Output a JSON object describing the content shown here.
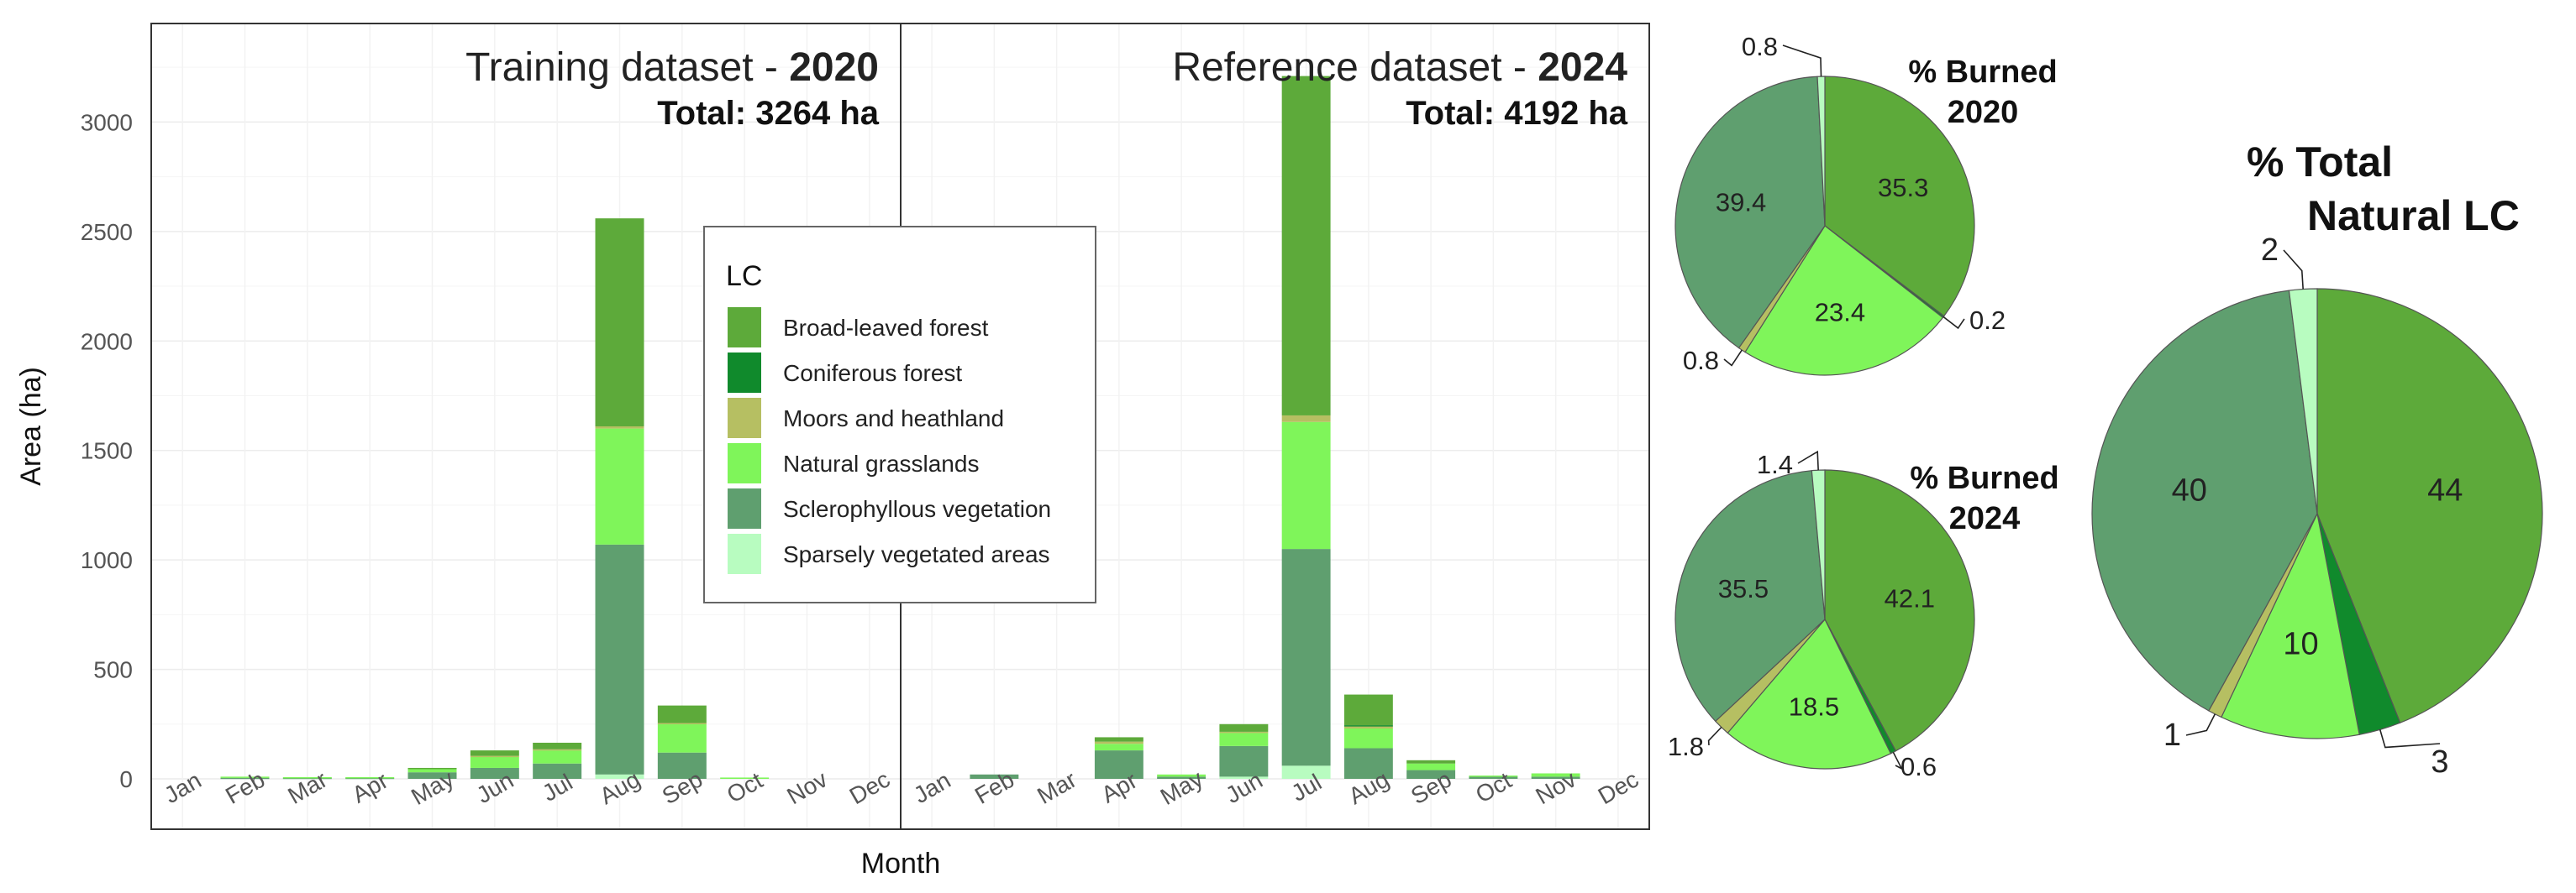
{
  "chart_data": [
    {
      "type": "bar",
      "stacked": true,
      "facets": [
        {
          "title_prefix": "Training dataset - ",
          "title_year": "2020",
          "total_label": "Total: 3264 ha"
        },
        {
          "title_prefix": "Reference dataset - ",
          "title_year": "2024",
          "total_label": "Total: 4192 ha"
        }
      ],
      "categories": [
        "Jan",
        "Feb",
        "Mar",
        "Apr",
        "May",
        "Jun",
        "Jul",
        "Aug",
        "Sep",
        "Oct",
        "Nov",
        "Dec"
      ],
      "xlabel": "Month",
      "ylabel": "Area (ha)",
      "ylim": [
        -230,
        3450
      ],
      "yticks": [
        0,
        500,
        1000,
        1500,
        2000,
        2500,
        3000
      ],
      "grid": true,
      "legend": {
        "title": "LC",
        "position": "center",
        "items": [
          {
            "name": "Broad-leaved forest",
            "color": "#5daa3a"
          },
          {
            "name": "Coniferous forest",
            "color": "#108a2c"
          },
          {
            "name": "Moors and heathland",
            "color": "#b6bf62"
          },
          {
            "name": "Natural grasslands",
            "color": "#7ff55a"
          },
          {
            "name": "Sclerophyllous vegetation",
            "color": "#5f9f6f"
          },
          {
            "name": "Sparsely vegetated areas",
            "color": "#b8fcc0"
          }
        ]
      },
      "series_2020": [
        {
          "name": "Sparsely vegetated areas",
          "values": [
            0,
            0,
            0,
            0,
            0,
            0,
            0,
            20,
            0,
            0,
            0,
            0
          ]
        },
        {
          "name": "Sclerophyllous vegetation",
          "values": [
            0,
            5,
            5,
            5,
            30,
            50,
            70,
            1050,
            120,
            0,
            0,
            0
          ]
        },
        {
          "name": "Natural grasslands",
          "values": [
            0,
            5,
            3,
            3,
            15,
            50,
            60,
            530,
            130,
            6,
            0,
            0
          ]
        },
        {
          "name": "Moors and heathland",
          "values": [
            0,
            0,
            0,
            0,
            0,
            5,
            5,
            10,
            5,
            0,
            0,
            0
          ]
        },
        {
          "name": "Coniferous forest",
          "values": [
            0,
            0,
            0,
            0,
            0,
            0,
            0,
            0,
            0,
            0,
            0,
            0
          ]
        },
        {
          "name": "Broad-leaved forest",
          "values": [
            0,
            0,
            0,
            0,
            5,
            25,
            30,
            950,
            80,
            0,
            0,
            0
          ]
        }
      ],
      "series_2024": [
        {
          "name": "Sparsely vegetated areas",
          "values": [
            0,
            0,
            0,
            0,
            0,
            10,
            60,
            0,
            0,
            0,
            0,
            0
          ]
        },
        {
          "name": "Sclerophyllous vegetation",
          "values": [
            0,
            20,
            0,
            130,
            10,
            140,
            990,
            140,
            40,
            10,
            10,
            0
          ]
        },
        {
          "name": "Natural grasslands",
          "values": [
            0,
            0,
            0,
            30,
            10,
            60,
            580,
            90,
            30,
            5,
            15,
            0
          ]
        },
        {
          "name": "Moors and heathland",
          "values": [
            0,
            0,
            0,
            10,
            0,
            5,
            30,
            10,
            0,
            0,
            0,
            0
          ]
        },
        {
          "name": "Coniferous forest",
          "values": [
            0,
            0,
            0,
            0,
            0,
            0,
            0,
            5,
            0,
            0,
            0,
            0
          ]
        },
        {
          "name": "Broad-leaved forest",
          "values": [
            0,
            0,
            0,
            20,
            0,
            35,
            1550,
            140,
            15,
            0,
            0,
            0
          ]
        }
      ]
    },
    {
      "type": "pie",
      "title_lines": [
        "% Burned",
        "2020"
      ],
      "slices": [
        {
          "name": "Broad-leaved forest",
          "value": 35.3,
          "label": "35.3"
        },
        {
          "name": "Coniferous forest",
          "value": 0.2,
          "label": "0.2"
        },
        {
          "name": "Natural grasslands",
          "value": 23.4,
          "label": "23.4"
        },
        {
          "name": "Moors and heathland",
          "value": 0.8,
          "label": "0.8"
        },
        {
          "name": "Sclerophyllous vegetation",
          "value": 39.4,
          "label": "39.4"
        },
        {
          "name": "Sparsely vegetated areas",
          "value": 0.8,
          "label": "0.8"
        }
      ]
    },
    {
      "type": "pie",
      "title_lines": [
        "% Burned",
        "2024"
      ],
      "slices": [
        {
          "name": "Broad-leaved forest",
          "value": 42.1,
          "label": "42.1"
        },
        {
          "name": "Coniferous forest",
          "value": 0.6,
          "label": "0.6"
        },
        {
          "name": "Natural grasslands",
          "value": 18.5,
          "label": "18.5"
        },
        {
          "name": "Moors and heathland",
          "value": 1.8,
          "label": "1.8"
        },
        {
          "name": "Sclerophyllous vegetation",
          "value": 35.5,
          "label": "35.5"
        },
        {
          "name": "Sparsely vegetated areas",
          "value": 1.4,
          "label": "1.4"
        }
      ]
    },
    {
      "type": "pie",
      "title_lines": [
        "% Total",
        "Natural LC"
      ],
      "slices": [
        {
          "name": "Broad-leaved forest",
          "value": 44,
          "label": "44"
        },
        {
          "name": "Coniferous forest",
          "value": 3,
          "label": "3"
        },
        {
          "name": "Natural grasslands",
          "value": 10,
          "label": "10"
        },
        {
          "name": "Moors and heathland",
          "value": 1,
          "label": "1"
        },
        {
          "name": "Sclerophyllous vegetation",
          "value": 40,
          "label": "40"
        },
        {
          "name": "Sparsely vegetated areas",
          "value": 2,
          "label": "2"
        }
      ]
    }
  ]
}
